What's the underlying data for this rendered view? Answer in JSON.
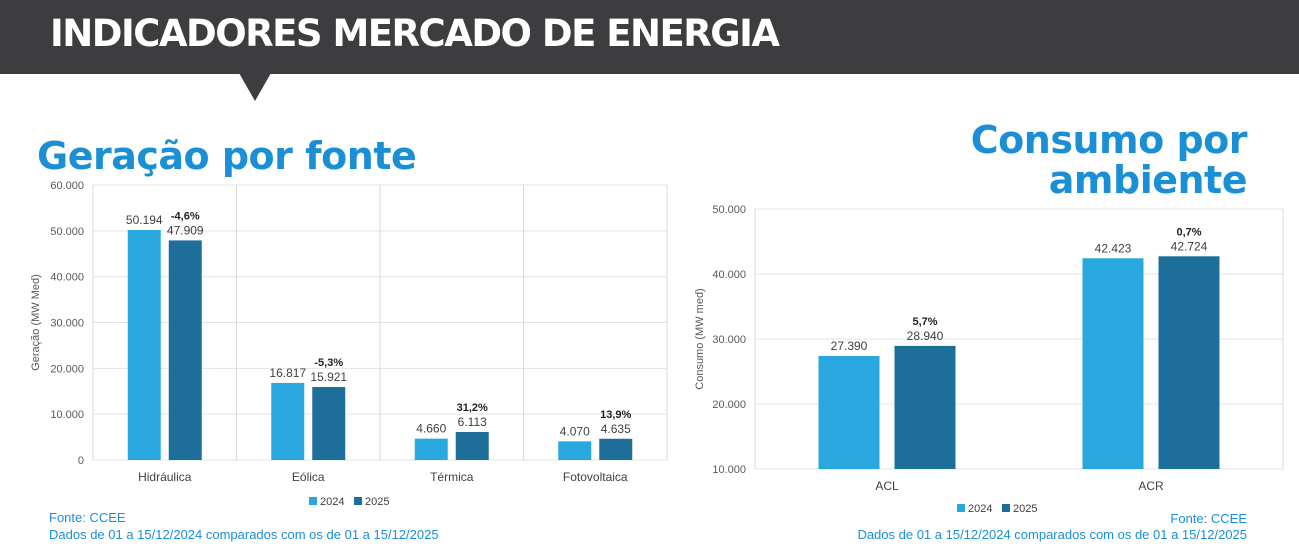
{
  "header": {
    "title": "INDICADORES MERCADO DE ENERGIA"
  },
  "generation": {
    "section_title": "Geração por fonte"
  },
  "consumption": {
    "section_title_line1": "Consumo por",
    "section_title_line2": "ambiente"
  },
  "footer": {
    "source_left": "Fonte: CCEE",
    "period_left": "Dados de 01 a 15/12/2024 comparados com os de 01 a 15/12/2025",
    "source_right": "Fonte: CCEE",
    "period_right": "Dados de 01 a 15/12/2024 comparados com os de 01 a 15/12/2025"
  },
  "colors": {
    "accent": "#1a8fd6",
    "series_2024": "#29a8e0",
    "series_2025": "#1e6e9a",
    "header_bg": "#3d3d3f"
  },
  "chart_data": [
    {
      "type": "bar",
      "title": "Geração por fonte",
      "ylabel": "Geração (MW Med)",
      "xlabel": "",
      "ylim": [
        0,
        60000
      ],
      "yticks": [
        0,
        10000,
        20000,
        30000,
        40000,
        50000,
        60000
      ],
      "ytick_labels": [
        "0",
        "10.000",
        "20.000",
        "30.000",
        "40.000",
        "50.000",
        "60.000"
      ],
      "categories": [
        "Hidráulica",
        "Eólica",
        "Térmica",
        "Fotovoltaica"
      ],
      "series": [
        {
          "name": "2024",
          "values": [
            50194,
            16817,
            4660,
            4070
          ],
          "labels": [
            "50.194",
            "16.817",
            "4.660",
            "4.070"
          ]
        },
        {
          "name": "2025",
          "values": [
            47909,
            15921,
            6113,
            4635
          ],
          "labels": [
            "47.909",
            "15.921",
            "6.113",
            "4.635"
          ]
        }
      ],
      "variations": [
        "-4,6%",
        "-5,3%",
        "31,2%",
        "13,9%"
      ],
      "legend": "bottom-center",
      "grid": true
    },
    {
      "type": "bar",
      "title": "Consumo por ambiente",
      "ylabel": "Consumo (MW med)",
      "xlabel": "",
      "ylim": [
        10000,
        50000
      ],
      "yticks": [
        10000,
        20000,
        30000,
        40000,
        50000
      ],
      "ytick_labels": [
        "10.000",
        "20.000",
        "30.000",
        "40.000",
        "50.000"
      ],
      "categories": [
        "ACL",
        "ACR"
      ],
      "series": [
        {
          "name": "2024",
          "values": [
            27390,
            42423
          ],
          "labels": [
            "27.390",
            "42.423"
          ]
        },
        {
          "name": "2025",
          "values": [
            28940,
            42724
          ],
          "labels": [
            "28.940",
            "42.724"
          ]
        }
      ],
      "variations": [
        "5,7%",
        "0,7%"
      ],
      "legend": "bottom-center",
      "grid": true
    }
  ]
}
